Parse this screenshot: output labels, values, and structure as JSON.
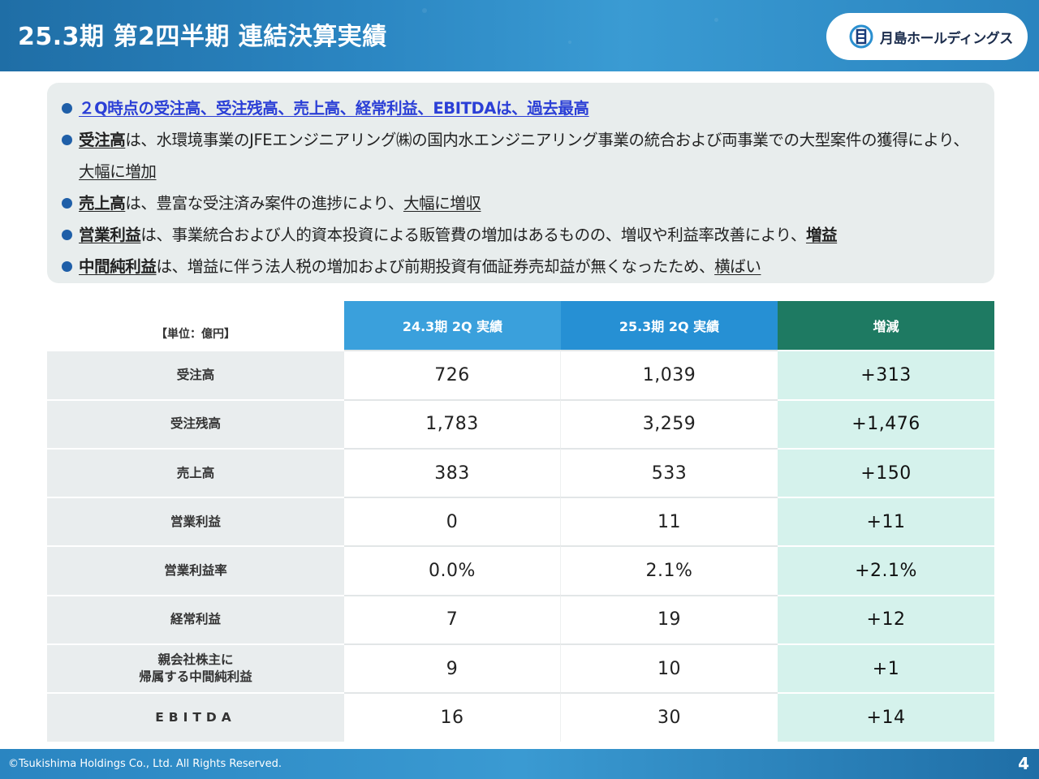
{
  "header": {
    "title": "25.3期 第2四半期 連結決算実績",
    "logo_text": "月島ホールディングス"
  },
  "bullets": {
    "headline": "２Q時点の受注高、受注残高、売上高、経常利益、EBITDAは、過去最高",
    "b1_key": "受注高",
    "b1_text": "は、水環境事業のJFEエンジニアリング㈱の国内水エンジニアリング事業の統合および両事業での大型案件の獲得により、",
    "b1_em": "大幅に増加",
    "b2_key": "売上高",
    "b2_text": "は、豊富な受注済み案件の進捗により、",
    "b2_em": "大幅に増収",
    "b3_key": "営業利益",
    "b3_text": "は、事業統合および人的資本投資による販管費の増加はあるものの、増収や利益率改善により、",
    "b3_em": "増益",
    "b4_key": "中間純利益",
    "b4_text": "は、増益に伴う法人税の増加および前期投資有価証券売却益が無くなったため、",
    "b4_em": "横ばい"
  },
  "table": {
    "unit": "【単位：億円】",
    "headers": [
      "24.3期 2Q 実績",
      "25.3期 2Q 実績",
      "増減"
    ],
    "rows": [
      {
        "label": "受注高",
        "prev": "726",
        "curr": "1,039",
        "diff": "+313"
      },
      {
        "label": "受注残高",
        "prev": "1,783",
        "curr": "3,259",
        "diff": "+1,476"
      },
      {
        "label": "売上高",
        "prev": "383",
        "curr": "533",
        "diff": "+150"
      },
      {
        "label": "営業利益",
        "prev": "0",
        "curr": "11",
        "diff": "+11"
      },
      {
        "label": "営業利益率",
        "prev": "0.0%",
        "curr": "2.1%",
        "diff": "+2.1%"
      },
      {
        "label": "経常利益",
        "prev": "7",
        "curr": "19",
        "diff": "+12"
      },
      {
        "label": "親会社株主に\n帰属する中間純利益",
        "prev": "9",
        "curr": "10",
        "diff": "+1"
      },
      {
        "label": "EBITDA",
        "prev": "16",
        "curr": "30",
        "diff": "+14"
      }
    ]
  },
  "footer": {
    "copyright": "©Tsukishima Holdings Co., Ltd. All Rights Reserved.",
    "page": "4"
  },
  "colors": {
    "header_blue": "#2b86c2",
    "headline_blue": "#2b3fd6",
    "bullet_dot": "#1f5fa8",
    "col1_header": "#3aa0dc",
    "col2_header": "#2690d4",
    "col3_header": "#1e7a62",
    "diff_bg": "#d5f2ec",
    "label_bg": "#e9edee"
  }
}
